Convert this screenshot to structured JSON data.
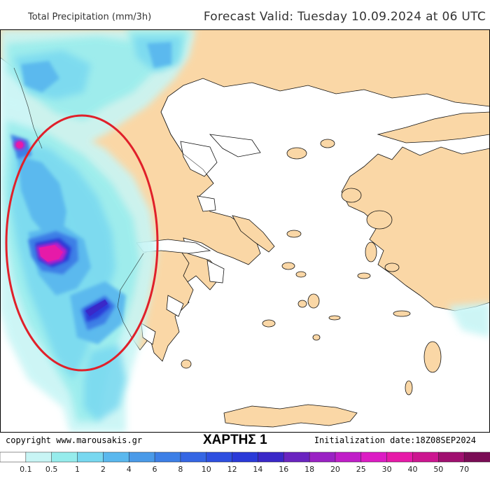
{
  "header": {
    "title": "Total Precipitation (mm/3h)",
    "forecast_valid": "Forecast Valid:  Tuesday 10.09.2024 at 06 UTC"
  },
  "footer": {
    "copyright": "copyright www.marousakis.gr",
    "map_title": "ΧΑΡΤΗΣ 1",
    "initialization": "Initialization date:18Z08SEP2024"
  },
  "scale": {
    "ticks": [
      "0.1",
      "0.5",
      "1",
      "2",
      "4",
      "6",
      "8",
      "10",
      "12",
      "14",
      "16",
      "18",
      "20",
      "25",
      "30",
      "40",
      "50",
      "70"
    ],
    "colors": [
      "#ffffff",
      "#c8f5f5",
      "#96ecec",
      "#78d8f0",
      "#5ab8ee",
      "#4a9ae8",
      "#3d7fe6",
      "#3566e4",
      "#2e4fe0",
      "#2a3ad8",
      "#3a28c8",
      "#6a24c0",
      "#9a22c4",
      "#c01ec8",
      "#dc1cc4",
      "#e61aa8",
      "#cc1690",
      "#a01070",
      "#7a0c55"
    ]
  },
  "colors": {
    "land": "#fad7a6",
    "sea": "#ffffff",
    "highlight_ellipse": "#e0202a"
  },
  "annotations": {
    "highlight": "red ellipse over western Greece / Ionian Sea"
  }
}
